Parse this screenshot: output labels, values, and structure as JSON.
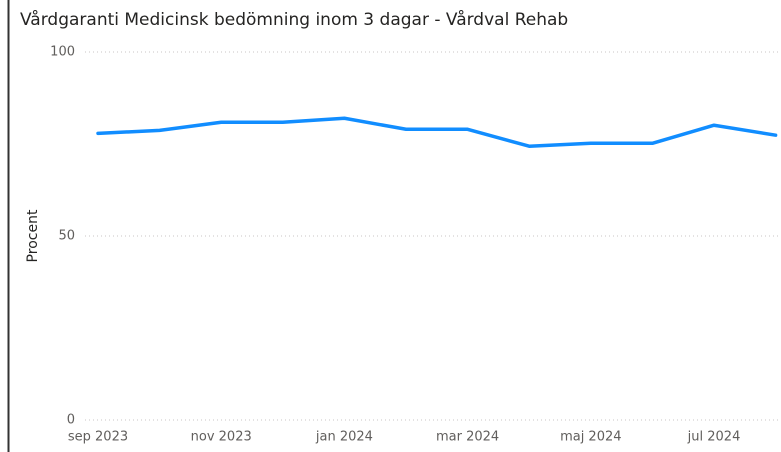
{
  "chart_data": {
    "type": "line",
    "title": "Vårdgaranti Medicinsk bedömning inom 3 dagar - Vårdval Rehab",
    "y_label": "Procent",
    "categories": [
      "sep 2023",
      null,
      "nov 2023",
      null,
      "jan 2024",
      null,
      "mar 2024",
      null,
      "maj 2024",
      null,
      "jul 2024",
      null
    ],
    "series": [
      {
        "name": "Procent",
        "color": "#118DFF",
        "values": [
          77.9,
          78.7,
          80.9,
          80.9,
          82.0,
          79.0,
          79.0,
          74.4,
          75.2,
          75.2,
          80.1,
          77.4
        ]
      }
    ],
    "ylim": [
      0,
      100
    ],
    "yticks": [
      0,
      50,
      100
    ],
    "grid": true
  }
}
